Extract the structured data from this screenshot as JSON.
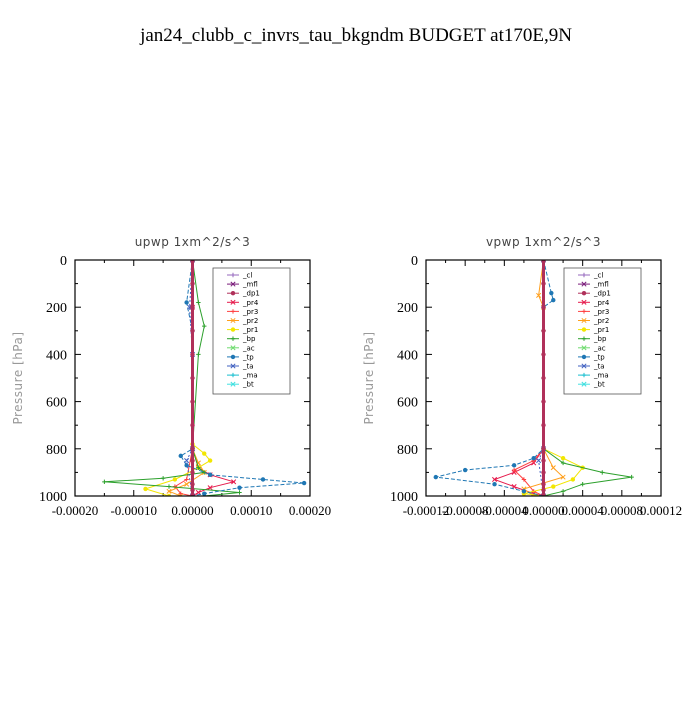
{
  "title": "jan24_clubb_c_invrs_tau_bkgndm  BUDGET at170E,9N",
  "colors": {
    "_cl": "#9467bd",
    "_mfl": "#7a1c7a",
    "_dp1": "#b0305a",
    "_pr4": "#e6194b",
    "_pr3": "#ff4040",
    "_pr2": "#ff9f1c",
    "_pr1": "#f2e600",
    "_bp": "#2ca02c",
    "_ac": "#6fdc6f",
    "_tp": "#1f77b4",
    "_ta": "#4060c0",
    "_ma": "#17becf",
    "_bt": "#40e0e0"
  },
  "chart_data": [
    {
      "type": "line",
      "title": "upwp   1xm^2/s^3",
      "ylabel": "Pressure [hPa]",
      "ylim": [
        1000,
        0
      ],
      "yticks": [
        "0",
        "200",
        "400",
        "600",
        "800",
        "1000"
      ],
      "xlim": [
        -0.0002,
        0.0002
      ],
      "xticks": [
        "-0.00020",
        "-0.00010",
        "0.00000",
        "0.00010",
        "0.00020"
      ],
      "legend_position": "upper-right",
      "series": [
        {
          "name": "_cl",
          "points": [
            [
              0,
              0
            ],
            [
              0,
              1000
            ]
          ]
        },
        {
          "name": "_mfl",
          "points": [
            [
              0,
              0
            ],
            [
              0,
              1000
            ]
          ]
        },
        {
          "name": "_dp1",
          "points": [
            [
              0,
              0
            ],
            [
              0,
              100
            ],
            [
              0,
              200
            ],
            [
              0,
              300
            ],
            [
              0,
              400
            ],
            [
              0,
              500
            ],
            [
              0,
              600
            ],
            [
              0,
              700
            ],
            [
              0,
              800
            ],
            [
              0,
              850
            ],
            [
              0,
              900
            ],
            [
              0,
              950
            ],
            [
              0,
              975
            ],
            [
              0,
              1000
            ]
          ]
        },
        {
          "name": "_pr4",
          "points": [
            [
              0,
              0
            ],
            [
              0,
              200
            ],
            [
              0,
              800
            ],
            [
              1e-05,
              880
            ],
            [
              3e-05,
              910
            ],
            [
              7e-05,
              940
            ],
            [
              3e-05,
              965
            ],
            [
              1e-05,
              985
            ],
            [
              0,
              1000
            ]
          ]
        },
        {
          "name": "_pr3",
          "points": [
            [
              0,
              0
            ],
            [
              0,
              800
            ],
            [
              -1e-05,
              930
            ],
            [
              -3e-05,
              960
            ],
            [
              -2e-05,
              990
            ],
            [
              0,
              1000
            ]
          ]
        },
        {
          "name": "_pr2",
          "points": [
            [
              0,
              0
            ],
            [
              0,
              800
            ],
            [
              1e-05,
              860
            ],
            [
              2e-05,
              900
            ],
            [
              -1e-05,
              950
            ],
            [
              -4e-05,
              980
            ],
            [
              -2e-05,
              1000
            ]
          ]
        },
        {
          "name": "_pr1",
          "points": [
            [
              0,
              0
            ],
            [
              0,
              780
            ],
            [
              2e-05,
              820
            ],
            [
              3e-05,
              850
            ],
            [
              1e-05,
              880
            ],
            [
              -3e-05,
              930
            ],
            [
              -8e-05,
              970
            ],
            [
              -4e-05,
              1000
            ]
          ]
        },
        {
          "name": "_bp",
          "points": [
            [
              0,
              0
            ],
            [
              1e-05,
              180
            ],
            [
              2e-05,
              280
            ],
            [
              1e-05,
              400
            ],
            [
              0,
              800
            ],
            [
              1e-05,
              880
            ],
            [
              2e-05,
              900
            ],
            [
              -5e-05,
              925
            ],
            [
              -0.00015,
              940
            ],
            [
              -4e-05,
              960
            ],
            [
              8e-05,
              985
            ],
            [
              2e-05,
              1000
            ]
          ]
        },
        {
          "name": "_ac",
          "points": [
            [
              0,
              0
            ],
            [
              0,
              1000
            ]
          ]
        },
        {
          "name": "_tp",
          "points": [
            [
              0,
              0
            ],
            [
              -1e-05,
              180
            ],
            [
              0,
              300
            ],
            [
              0,
              800
            ],
            [
              -2e-05,
              830
            ],
            [
              -1e-05,
              870
            ],
            [
              3e-05,
              910
            ],
            [
              0.00012,
              930
            ],
            [
              0.00019,
              945
            ],
            [
              8e-05,
              965
            ],
            [
              2e-05,
              990
            ],
            [
              0,
              1000
            ]
          ]
        },
        {
          "name": "_ta",
          "points": [
            [
              0,
              0
            ],
            [
              -5e-06,
              200
            ],
            [
              0,
              400
            ],
            [
              0,
              800
            ],
            [
              -1e-05,
              850
            ],
            [
              0,
              1000
            ]
          ]
        },
        {
          "name": "_ma",
          "points": [
            [
              0,
              0
            ],
            [
              0,
              1000
            ]
          ]
        },
        {
          "name": "_bt",
          "points": [
            [
              0,
              0
            ],
            [
              0,
              1000
            ]
          ]
        }
      ]
    },
    {
      "type": "line",
      "title": "vpwp   1xm^2/s^3",
      "ylabel": "Pressure [hPa]",
      "ylim": [
        1000,
        0
      ],
      "yticks": [
        "0",
        "200",
        "400",
        "600",
        "800",
        "1000"
      ],
      "xlim": [
        -0.00012,
        0.00012
      ],
      "xticks": [
        "-0.00012",
        "-0.00008",
        "-0.00004",
        "0.00000",
        "0.00004",
        "0.00008",
        "0.00012"
      ],
      "legend_position": "upper-right",
      "series": [
        {
          "name": "_cl",
          "points": [
            [
              0,
              0
            ],
            [
              0,
              1000
            ]
          ]
        },
        {
          "name": "_mfl",
          "points": [
            [
              0,
              0
            ],
            [
              0,
              1000
            ]
          ]
        },
        {
          "name": "_dp1",
          "points": [
            [
              0,
              0
            ],
            [
              0,
              100
            ],
            [
              0,
              200
            ],
            [
              0,
              300
            ],
            [
              0,
              400
            ],
            [
              0,
              500
            ],
            [
              0,
              600
            ],
            [
              0,
              700
            ],
            [
              0,
              800
            ],
            [
              0,
              850
            ],
            [
              0,
              900
            ],
            [
              0,
              950
            ],
            [
              0,
              975
            ],
            [
              0,
              1000
            ]
          ]
        },
        {
          "name": "_pr4",
          "points": [
            [
              0,
              0
            ],
            [
              0,
              800
            ],
            [
              -1e-05,
              860
            ],
            [
              -3e-05,
              900
            ],
            [
              -5e-05,
              930
            ],
            [
              -3e-05,
              960
            ],
            [
              -1e-05,
              990
            ],
            [
              0,
              1000
            ]
          ]
        },
        {
          "name": "_pr3",
          "points": [
            [
              0,
              0
            ],
            [
              0,
              800
            ],
            [
              -1e-05,
              850
            ],
            [
              -3e-05,
              890
            ],
            [
              -2e-05,
              930
            ],
            [
              -1e-05,
              980
            ],
            [
              0,
              1000
            ]
          ]
        },
        {
          "name": "_pr2",
          "points": [
            [
              0,
              0
            ],
            [
              -5e-06,
              150
            ],
            [
              0,
              200
            ],
            [
              0,
              800
            ],
            [
              1e-05,
              880
            ],
            [
              2e-05,
              920
            ],
            [
              -2e-05,
              970
            ],
            [
              -1e-05,
              1000
            ]
          ]
        },
        {
          "name": "_pr1",
          "points": [
            [
              0,
              0
            ],
            [
              0,
              800
            ],
            [
              2e-05,
              840
            ],
            [
              4e-05,
              880
            ],
            [
              3e-05,
              930
            ],
            [
              1e-05,
              960
            ],
            [
              -2e-05,
              990
            ],
            [
              0,
              1000
            ]
          ]
        },
        {
          "name": "_bp",
          "points": [
            [
              0,
              0
            ],
            [
              0,
              300
            ],
            [
              0,
              800
            ],
            [
              2e-05,
              860
            ],
            [
              6e-05,
              900
            ],
            [
              9e-05,
              920
            ],
            [
              4e-05,
              950
            ],
            [
              2e-05,
              980
            ],
            [
              0,
              1000
            ]
          ]
        },
        {
          "name": "_ac",
          "points": [
            [
              0,
              0
            ],
            [
              0,
              1000
            ]
          ]
        },
        {
          "name": "_tp",
          "points": [
            [
              0,
              0
            ],
            [
              8e-06,
              140
            ],
            [
              1e-05,
              170
            ],
            [
              0,
              200
            ],
            [
              0,
              800
            ],
            [
              -1e-05,
              840
            ],
            [
              -3e-05,
              870
            ],
            [
              -8e-05,
              890
            ],
            [
              -0.00011,
              920
            ],
            [
              -5e-05,
              950
            ],
            [
              -2e-05,
              980
            ],
            [
              0,
              1000
            ]
          ]
        },
        {
          "name": "_ta",
          "points": [
            [
              0,
              0
            ],
            [
              0,
              800
            ],
            [
              -5e-06,
              850
            ],
            [
              0,
              1000
            ]
          ]
        },
        {
          "name": "_ma",
          "points": [
            [
              0,
              0
            ],
            [
              0,
              1000
            ]
          ]
        },
        {
          "name": "_bt",
          "points": [
            [
              0,
              0
            ],
            [
              0,
              1000
            ]
          ]
        }
      ]
    }
  ]
}
